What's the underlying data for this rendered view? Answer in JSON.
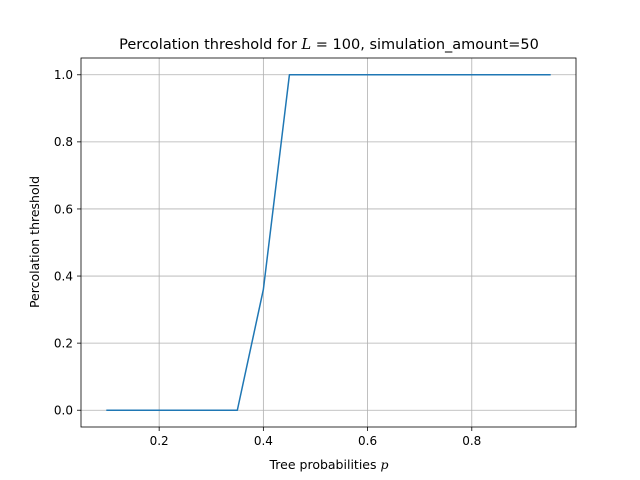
{
  "chart_data": {
    "type": "line",
    "title": {
      "prefix": "Percolation threshold for ",
      "math_var": "L",
      "math_rest": " = 100",
      "suffix": ", simulation_amount=50"
    },
    "xlabel": {
      "text": "Tree probabilities ",
      "math_var": "p"
    },
    "ylabel": "Percolation threshold",
    "xlim": [
      0.05,
      1.0
    ],
    "ylim": [
      -0.05,
      1.05
    ],
    "xticks": [
      0.2,
      0.4,
      0.6,
      0.8
    ],
    "xtick_labels": [
      "0.2",
      "0.4",
      "0.6",
      "0.8"
    ],
    "yticks": [
      0.0,
      0.2,
      0.4,
      0.6,
      0.8,
      1.0
    ],
    "ytick_labels": [
      "0.0",
      "0.2",
      "0.4",
      "0.6",
      "0.8",
      "1.0"
    ],
    "grid": true,
    "series": [
      {
        "color": "#1f77b4",
        "x": [
          0.1,
          0.15,
          0.2,
          0.25,
          0.3,
          0.35,
          0.4,
          0.45,
          0.5,
          0.55,
          0.6,
          0.65,
          0.7,
          0.75,
          0.8,
          0.85,
          0.9,
          0.95
        ],
        "y": [
          0.0,
          0.0,
          0.0,
          0.0,
          0.0,
          0.0,
          0.36,
          1.0,
          1.0,
          1.0,
          1.0,
          1.0,
          1.0,
          1.0,
          1.0,
          1.0,
          1.0,
          1.0
        ]
      }
    ]
  }
}
